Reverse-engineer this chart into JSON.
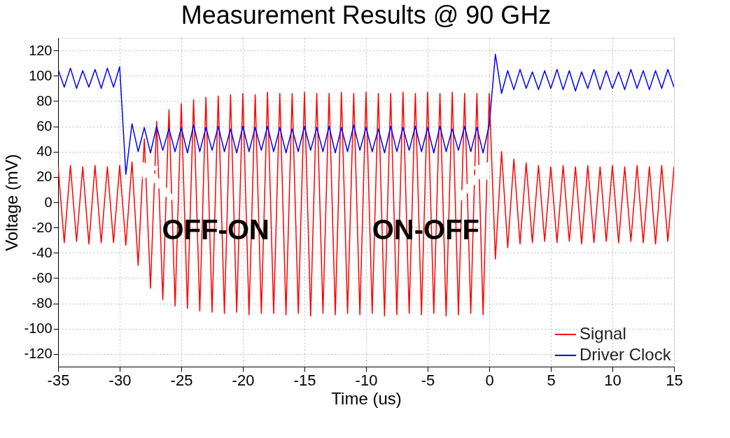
{
  "chart_data": {
    "type": "line",
    "title": "Measurement Results @ 90 GHz",
    "xlabel": "Time (us)",
    "ylabel": "Voltage (mV)",
    "x": [
      -35,
      -34.5,
      -34,
      -33.5,
      -33,
      -32.5,
      -32,
      -31.5,
      -31,
      -30.5,
      -30,
      -29.5,
      -29,
      -28.5,
      -28,
      -27.5,
      -27,
      -26.5,
      -26,
      -25.5,
      -25,
      -24.5,
      -24,
      -23.5,
      -23,
      -22.5,
      -22,
      -21.5,
      -21,
      -20.5,
      -20,
      -19.5,
      -19,
      -18.5,
      -18,
      -17.5,
      -17,
      -16.5,
      -16,
      -15.5,
      -15,
      -14.5,
      -14,
      -13.5,
      -13,
      -12.5,
      -12,
      -11.5,
      -11,
      -10.5,
      -10,
      -9.5,
      -9,
      -8.5,
      -8,
      -7.5,
      -7,
      -6.5,
      -6,
      -5.5,
      -5,
      -4.5,
      -4,
      -3.5,
      -3,
      -2.5,
      -2,
      -1.5,
      -1,
      -0.5,
      0,
      0.5,
      1,
      1.5,
      2,
      2.5,
      3,
      3.5,
      4,
      4.5,
      5,
      5.5,
      6,
      6.5,
      7,
      7.5,
      8,
      8.5,
      9,
      9.5,
      10,
      10.5,
      11,
      11.5,
      12,
      12.5,
      13,
      13.5,
      14,
      14.5,
      15
    ],
    "series": [
      {
        "name": "Signal",
        "color": "#ff0000",
        "values": [
          28,
          -32,
          29,
          -31,
          28,
          -33,
          29,
          -32,
          28,
          -32,
          29,
          -34,
          32,
          -50,
          50,
          -68,
          64,
          -77,
          73,
          -82,
          78,
          -84,
          81,
          -86,
          83,
          -87,
          84,
          -88,
          85,
          -87,
          86,
          -89,
          85,
          -88,
          87,
          -88,
          86,
          -89,
          86,
          -88,
          87,
          -90,
          86,
          -88,
          86,
          -89,
          87,
          -88,
          86,
          -89,
          87,
          -88,
          86,
          -90,
          86,
          -89,
          87,
          -88,
          86,
          -89,
          87,
          -88,
          86,
          -90,
          87,
          -89,
          86,
          -88,
          86,
          -89,
          86,
          -45,
          40,
          -36,
          34,
          -33,
          31,
          -32,
          29,
          -31,
          28,
          -32,
          29,
          -31,
          28,
          -33,
          29,
          -32,
          28,
          -31,
          29,
          -32,
          28,
          -31,
          29,
          -32,
          28,
          -33,
          29,
          -31,
          28
        ]
      },
      {
        "name": "Driver Clock",
        "color": "#0000ff",
        "values": [
          105,
          91,
          106,
          90,
          104,
          91,
          105,
          90,
          106,
          91,
          107,
          22,
          62,
          40,
          59,
          39,
          60,
          41,
          58,
          40,
          59,
          39,
          61,
          40,
          59,
          41,
          60,
          40,
          58,
          39,
          60,
          40,
          59,
          41,
          60,
          40,
          59,
          39,
          58,
          40,
          60,
          41,
          59,
          40,
          60,
          39,
          59,
          40,
          61,
          41,
          59,
          40,
          58,
          39,
          60,
          40,
          59,
          41,
          60,
          40,
          59,
          39,
          60,
          40,
          58,
          41,
          60,
          40,
          59,
          39,
          61,
          117,
          86,
          104,
          89,
          105,
          90,
          103,
          89,
          104,
          90,
          105,
          89,
          104,
          88,
          103,
          90,
          105,
          89,
          104,
          90,
          103,
          89,
          105,
          90,
          104,
          89,
          104,
          90,
          105,
          91
        ]
      }
    ],
    "xlim": [
      -35,
      15
    ],
    "xticks": [
      -35,
      -30,
      -25,
      -20,
      -15,
      -10,
      -5,
      0,
      5,
      10,
      15
    ],
    "ylim": [
      -130,
      130
    ],
    "yticks": [
      -120,
      -100,
      -80,
      -60,
      -40,
      -20,
      0,
      20,
      40,
      60,
      80,
      100,
      120
    ],
    "annotations": [
      "OFF-ON",
      "ON-OFF"
    ],
    "grid": true,
    "legend": "bottom right",
    "marker": "none",
    "line_style": "solid"
  }
}
